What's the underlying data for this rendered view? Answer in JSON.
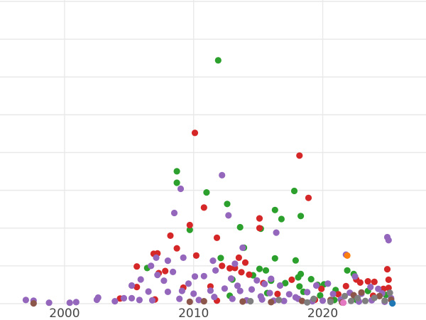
{
  "chart_data": {
    "type": "scatter",
    "title": "",
    "xlabel": "",
    "ylabel": "",
    "xlim": [
      1995,
      2028
    ],
    "ylim": [
      0,
      100
    ],
    "x_ticks": [
      2000,
      2010,
      2020
    ],
    "x_tick_labels": [
      "2000",
      "2010",
      "2020"
    ],
    "y_gridlines": [
      0,
      12.5,
      25,
      37.5,
      50,
      62.5,
      75,
      87.5,
      100
    ],
    "grid": true,
    "legend": "none",
    "series": [
      {
        "color": "#2ca02c",
        "points": [
          [
            2011.9,
            80.5
          ],
          [
            2008.7,
            43.8
          ],
          [
            2008.7,
            40.0
          ],
          [
            2011.0,
            36.8
          ],
          [
            2012.6,
            33.0
          ],
          [
            2016.3,
            31.0
          ],
          [
            2017.8,
            37.3
          ],
          [
            2016.8,
            28.0
          ],
          [
            2018.3,
            29.0
          ],
          [
            2013.6,
            25.3
          ],
          [
            2009.7,
            24.4
          ],
          [
            2015.2,
            24.8
          ],
          [
            2013.9,
            18.5
          ],
          [
            2012.1,
            15.1
          ],
          [
            2016.3,
            15.0
          ],
          [
            2017.9,
            14.3
          ],
          [
            2015.6,
            11.0
          ],
          [
            2018.3,
            9.8
          ],
          [
            2018.1,
            8.7
          ],
          [
            2019.1,
            8.1
          ],
          [
            2021.9,
            11.0
          ],
          [
            2006.4,
            11.8
          ],
          [
            2022.4,
            9.8
          ],
          [
            2015.1,
            11.5
          ],
          [
            2020.1,
            6.4
          ],
          [
            2013.0,
            8.0
          ],
          [
            2017.1,
            6.8
          ],
          [
            2019.6,
            6.2
          ],
          [
            2021.0,
            4.5
          ],
          [
            2023.5,
            4.2
          ],
          [
            2016.0,
            7.6
          ],
          [
            2018.2,
            5.7
          ],
          [
            2014.6,
            9.4
          ],
          [
            2012.8,
            2.6
          ],
          [
            2020.9,
            1.2
          ],
          [
            2024.9,
            2.9
          ],
          [
            2018.5,
            3.9
          ],
          [
            2015.7,
            3.5
          ],
          [
            2022.6,
            1.3
          ],
          [
            2019.8,
            2.7
          ]
        ]
      },
      {
        "color": "#d62728",
        "points": [
          [
            2010.1,
            56.5
          ],
          [
            2018.2,
            49.0
          ],
          [
            2018.9,
            35.0
          ],
          [
            2010.8,
            31.8
          ],
          [
            2015.1,
            28.2
          ],
          [
            2009.7,
            26.0
          ],
          [
            2008.2,
            22.5
          ],
          [
            2011.8,
            21.8
          ],
          [
            2015.1,
            25.0
          ],
          [
            2008.7,
            18.3
          ],
          [
            2006.9,
            16.5
          ],
          [
            2007.2,
            16.6
          ],
          [
            2010.2,
            15.9
          ],
          [
            2013.5,
            15.2
          ],
          [
            2014.0,
            13.6
          ],
          [
            2005.6,
            12.3
          ],
          [
            2012.2,
            12.5
          ],
          [
            2012.8,
            11.7
          ],
          [
            2013.2,
            11.8
          ],
          [
            2007.8,
            10.8
          ],
          [
            2013.7,
            10.4
          ],
          [
            2014.3,
            9.6
          ],
          [
            2007.3,
            10.1
          ],
          [
            2025.0,
            11.4
          ],
          [
            2025.1,
            7.9
          ],
          [
            2005.6,
            5.5
          ],
          [
            2009.2,
            5.3
          ],
          [
            2011.3,
            5.7
          ],
          [
            2015.4,
            6.8
          ],
          [
            2017.6,
            7.9
          ],
          [
            2021.8,
            5.8
          ],
          [
            2022.6,
            8.0
          ],
          [
            2022.9,
            7.0
          ],
          [
            2023.5,
            7.4
          ],
          [
            2024.0,
            7.2
          ],
          [
            2024.7,
            4.9
          ],
          [
            2025.1,
            5.2
          ],
          [
            2021.2,
            3.1
          ],
          [
            2019.9,
            4.9
          ],
          [
            2016.5,
            3.2
          ],
          [
            2007.0,
            1.4
          ],
          [
            2011.8,
            1.0
          ],
          [
            2004.3,
            1.7
          ],
          [
            2019.4,
            1.3
          ],
          [
            2023.9,
            2.6
          ]
        ]
      },
      {
        "color": "#9467bd",
        "points": [
          [
            2012.2,
            42.5
          ],
          [
            2009.0,
            38.0
          ],
          [
            2008.5,
            30.0
          ],
          [
            2012.7,
            29.2
          ],
          [
            2016.4,
            23.5
          ],
          [
            2013.8,
            18.5
          ],
          [
            2021.8,
            16.2
          ],
          [
            2025.0,
            22.0
          ],
          [
            2025.1,
            21.0
          ],
          [
            2009.2,
            15.2
          ],
          [
            2011.5,
            14.2
          ],
          [
            2007.1,
            15.2
          ],
          [
            2008.0,
            14.2
          ],
          [
            2006.7,
            12.5
          ],
          [
            2011.7,
            11.0
          ],
          [
            2013.2,
            13.2
          ],
          [
            2005.9,
            8.0
          ],
          [
            2007.2,
            9.5
          ],
          [
            2008.4,
            10.5
          ],
          [
            2010.1,
            9.0
          ],
          [
            2010.8,
            9.1
          ],
          [
            2012.9,
            8.3
          ],
          [
            2015.5,
            6.5
          ],
          [
            2016.7,
            6.0
          ],
          [
            2019.5,
            6.0
          ],
          [
            2020.4,
            6.6
          ],
          [
            2022.5,
            9.0
          ],
          [
            2023.7,
            5.5
          ],
          [
            2024.3,
            4.9
          ],
          [
            2006.5,
            4.0
          ],
          [
            2008.0,
            3.9
          ],
          [
            2009.1,
            4.2
          ],
          [
            2010.0,
            3.3
          ],
          [
            2011.3,
            4.3
          ],
          [
            2012.4,
            5.0
          ],
          [
            2013.6,
            4.2
          ],
          [
            2014.5,
            4.7
          ],
          [
            2015.9,
            3.5
          ],
          [
            2017.4,
            3.1
          ],
          [
            2018.8,
            3.8
          ],
          [
            2020.8,
            3.2
          ],
          [
            2022.1,
            3.6
          ],
          [
            2023.0,
            3.3
          ],
          [
            2024.6,
            3.4
          ],
          [
            2002.6,
            2.0
          ],
          [
            2004.6,
            1.8
          ],
          [
            2005.2,
            1.8
          ],
          [
            1997.0,
            1.2
          ],
          [
            1997.6,
            1.0
          ],
          [
            1998.8,
            0.3
          ],
          [
            2000.4,
            0.3
          ],
          [
            2000.9,
            0.5
          ],
          [
            2002.5,
            1.3
          ],
          [
            2003.9,
            0.8
          ],
          [
            2005.8,
            1.2
          ],
          [
            2006.8,
            1.1
          ],
          [
            2008.9,
            1.6
          ],
          [
            2010.4,
            1.2
          ],
          [
            2011.6,
            2.2
          ],
          [
            2013.0,
            1.6
          ],
          [
            2014.1,
            1.1
          ],
          [
            2015.3,
            1.4
          ],
          [
            2016.2,
            1.0
          ],
          [
            2017.0,
            0.9
          ],
          [
            2018.1,
            1.6
          ],
          [
            2019.2,
            0.8
          ],
          [
            2020.0,
            1.0
          ],
          [
            2021.4,
            1.4
          ],
          [
            2022.8,
            0.7
          ],
          [
            2023.8,
            1.1
          ],
          [
            2024.8,
            0.6
          ],
          [
            2025.3,
            1.8
          ],
          [
            2014.9,
            7.7
          ],
          [
            2016.0,
            8.2
          ],
          [
            2013.4,
            5.9
          ],
          [
            2007.7,
            7.6
          ],
          [
            2009.6,
            6.6
          ],
          [
            2005.2,
            6.0
          ],
          [
            2015.2,
            2.4
          ],
          [
            2017.9,
            2.1
          ]
        ]
      },
      {
        "color": "#8c564b",
        "points": [
          [
            1997.6,
            0.1
          ],
          [
            2009.7,
            0.6
          ],
          [
            2010.8,
            0.8
          ],
          [
            2013.8,
            0.7
          ],
          [
            2018.4,
            0.9
          ],
          [
            2020.6,
            1.2
          ],
          [
            2022.4,
            2.8
          ],
          [
            2023.0,
            3.7
          ],
          [
            2024.4,
            2.5
          ],
          [
            2025.3,
            1.3
          ],
          [
            2016.0,
            0.5
          ],
          [
            2021.5,
            0.4
          ]
        ]
      },
      {
        "color": "#7f7f7f",
        "points": [
          [
            2019.3,
            1.6
          ],
          [
            2021.7,
            2.5
          ],
          [
            2022.7,
            1.8
          ],
          [
            2023.3,
            0.9
          ],
          [
            2024.0,
            1.9
          ],
          [
            2024.8,
            1.0
          ],
          [
            2020.6,
            0.6
          ],
          [
            2016.6,
            1.2
          ],
          [
            2018.8,
            0.4
          ],
          [
            2014.4,
            0.8
          ],
          [
            2025.2,
            3.6
          ],
          [
            2022.2,
            0.9
          ]
        ]
      },
      {
        "color": "#ff7f0e",
        "points": [
          [
            2021.9,
            15.9
          ]
        ]
      },
      {
        "color": "#1f77b4",
        "points": [
          [
            2025.4,
            0.1
          ]
        ]
      },
      {
        "color": "#e377c2",
        "points": [
          [
            2021.6,
            0.3
          ]
        ]
      }
    ]
  }
}
